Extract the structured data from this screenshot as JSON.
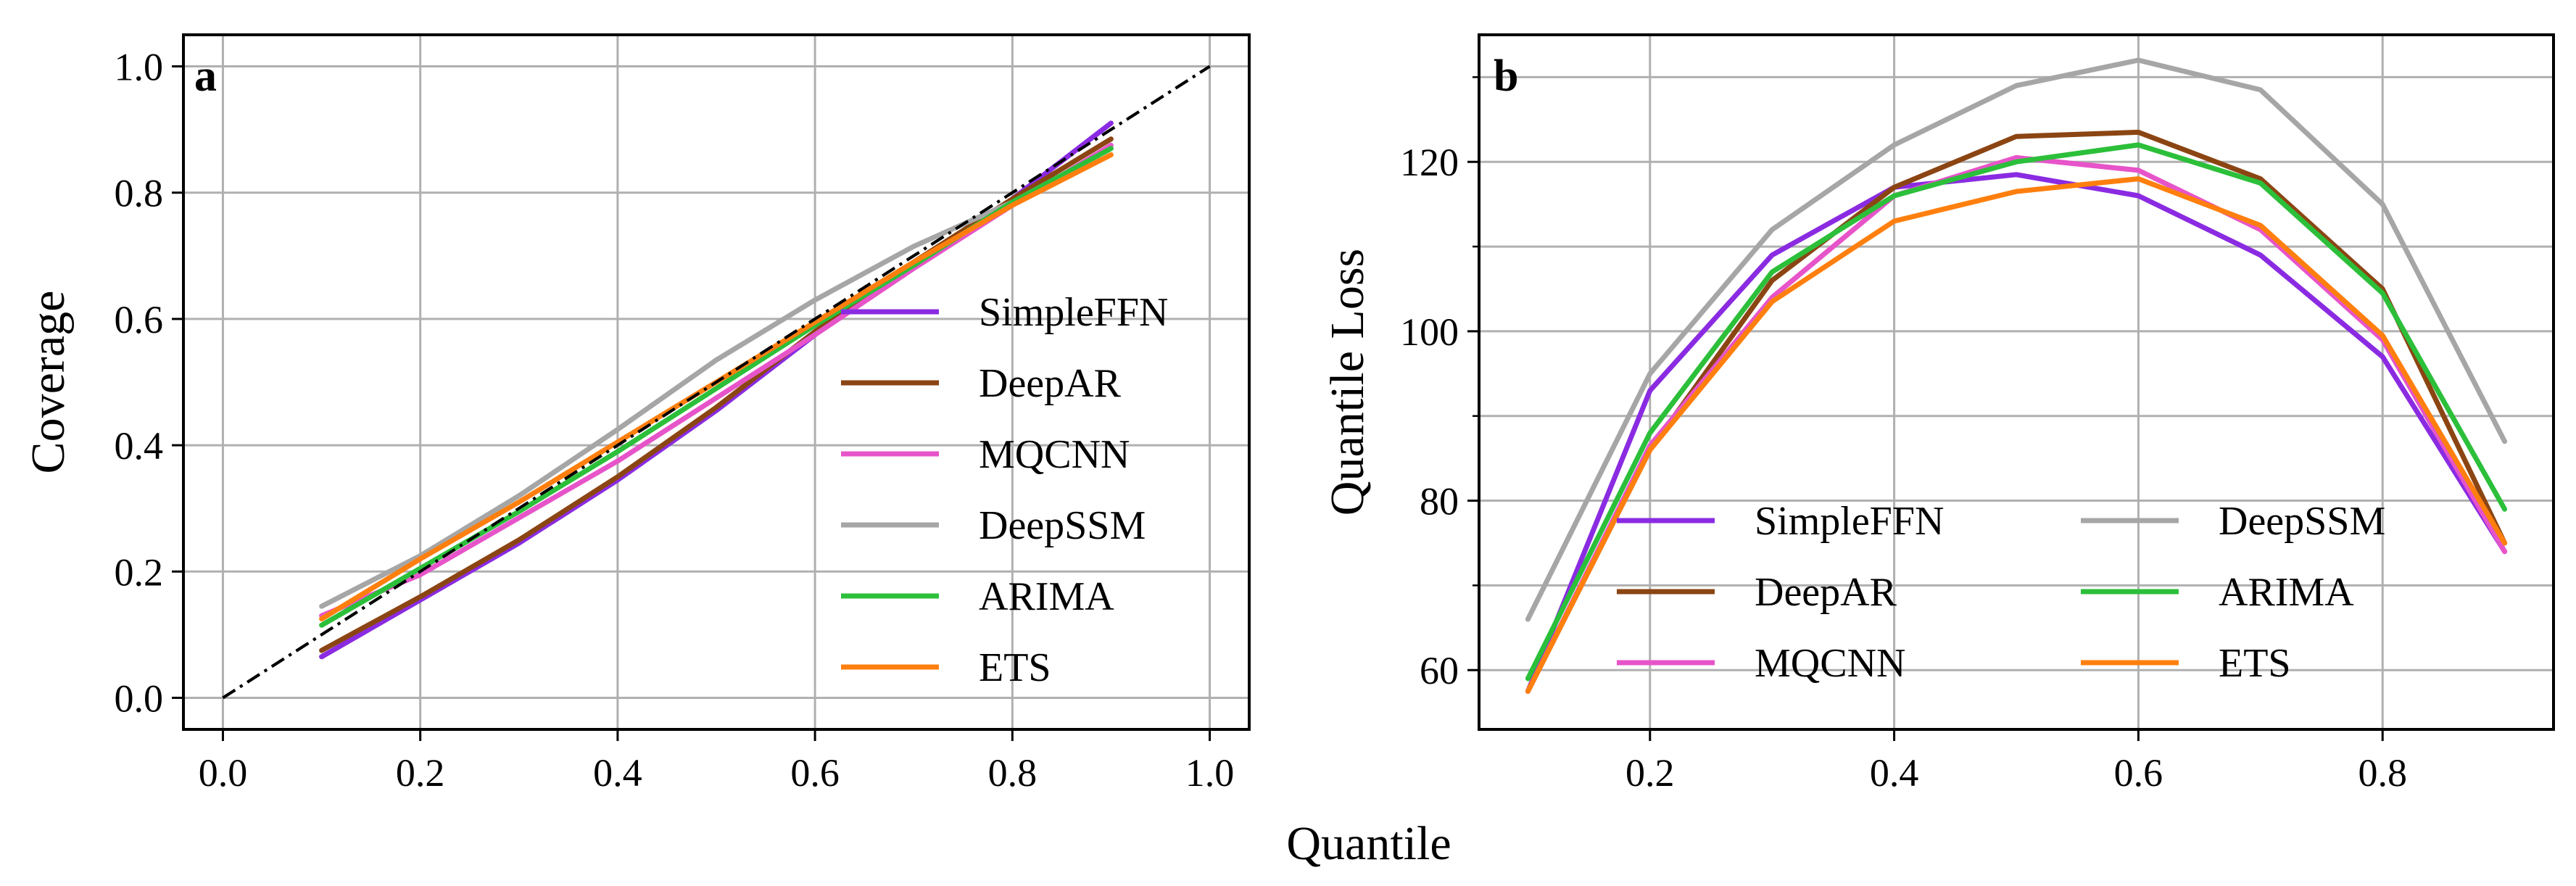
{
  "figure": {
    "shared_xlabel": "Quantile"
  },
  "chart_data": [
    {
      "panel": "a",
      "type": "line",
      "title": "",
      "xlabel": "",
      "ylabel": "Coverage",
      "xlim": [
        -0.04,
        1.04
      ],
      "ylim": [
        -0.05,
        1.05
      ],
      "xticks": [
        0.0,
        0.2,
        0.4,
        0.6,
        0.8,
        1.0
      ],
      "xtick_labels": [
        "0.0",
        "0.2",
        "0.4",
        "0.6",
        "0.8",
        "1.0"
      ],
      "yticks": [
        0.0,
        0.2,
        0.4,
        0.6,
        0.8,
        1.0
      ],
      "ytick_labels": [
        "0.0",
        "0.2",
        "0.4",
        "0.6",
        "0.8",
        "1.0"
      ],
      "grid": true,
      "legend_position": "lower-right",
      "legend_columns": 1,
      "reference_line": {
        "style": "dash-dot",
        "color": "#000000",
        "x": [
          0.0,
          1.0
        ],
        "y": [
          0.0,
          1.0
        ]
      },
      "x": [
        0.1,
        0.2,
        0.3,
        0.4,
        0.5,
        0.6,
        0.7,
        0.8,
        0.9
      ],
      "series": [
        {
          "name": "SimpleFFN",
          "color": "#8a2be2",
          "values": [
            0.065,
            0.155,
            0.245,
            0.345,
            0.455,
            0.575,
            0.685,
            0.79,
            0.91
          ]
        },
        {
          "name": "DeepAR",
          "color": "#8b4513",
          "values": [
            0.075,
            0.16,
            0.25,
            0.35,
            0.46,
            0.58,
            0.69,
            0.79,
            0.885
          ]
        },
        {
          "name": "MQCNN",
          "color": "#e754c9",
          "values": [
            0.13,
            0.195,
            0.285,
            0.375,
            0.475,
            0.575,
            0.68,
            0.78,
            0.875
          ]
        },
        {
          "name": "DeepSSM",
          "color": "#a6a6a6",
          "values": [
            0.145,
            0.225,
            0.32,
            0.425,
            0.535,
            0.63,
            0.715,
            0.785,
            0.87
          ]
        },
        {
          "name": "ARIMA",
          "color": "#2cbf3a",
          "values": [
            0.115,
            0.205,
            0.295,
            0.39,
            0.49,
            0.59,
            0.685,
            0.785,
            0.87
          ]
        },
        {
          "name": "ETS",
          "color": "#ff7f0e",
          "values": [
            0.125,
            0.22,
            0.31,
            0.405,
            0.5,
            0.595,
            0.69,
            0.78,
            0.86
          ]
        }
      ]
    },
    {
      "panel": "b",
      "type": "line",
      "title": "",
      "xlabel": "",
      "ylabel": "Quantile Loss",
      "xlim": [
        0.06,
        0.94
      ],
      "ylim": [
        53,
        135
      ],
      "xticks": [
        0.2,
        0.4,
        0.6,
        0.8
      ],
      "xtick_labels": [
        "0.2",
        "0.4",
        "0.6",
        "0.8"
      ],
      "yticks": [
        60,
        80,
        100,
        120
      ],
      "ytick_labels": [
        "60",
        "80",
        "100",
        "120"
      ],
      "grid": true,
      "legend_position": "lower-center",
      "legend_columns": 2,
      "x": [
        0.1,
        0.2,
        0.3,
        0.4,
        0.5,
        0.6,
        0.7,
        0.8,
        0.9
      ],
      "series": [
        {
          "name": "SimpleFFN",
          "color": "#8a2be2",
          "values": [
            57.5,
            93,
            109,
            117,
            118.5,
            116,
            109,
            97,
            74
          ]
        },
        {
          "name": "DeepAR",
          "color": "#8b4513",
          "values": [
            57.5,
            86,
            106,
            117,
            123,
            123.5,
            118,
            105,
            75
          ]
        },
        {
          "name": "MQCNN",
          "color": "#e754c9",
          "values": [
            57.5,
            86.5,
            104,
            116,
            120.5,
            119,
            112,
            99,
            74
          ]
        },
        {
          "name": "DeepSSM",
          "color": "#a6a6a6",
          "values": [
            66,
            95,
            112,
            122,
            129,
            132,
            128.5,
            115,
            87
          ]
        },
        {
          "name": "ARIMA",
          "color": "#2cbf3a",
          "values": [
            59,
            88,
            107,
            116,
            120,
            122,
            117.5,
            104.5,
            79
          ]
        },
        {
          "name": "ETS",
          "color": "#ff7f0e",
          "values": [
            57.5,
            86,
            103.5,
            113,
            116.5,
            118,
            112.5,
            99.5,
            75
          ]
        }
      ]
    }
  ]
}
